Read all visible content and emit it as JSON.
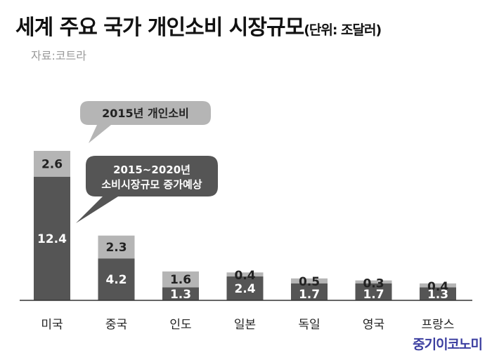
{
  "header": {
    "title": "세계 주요 국가 개인소비 시장규모",
    "unit": "(단위: 조달러)",
    "source": "자료:코트라"
  },
  "legend": {
    "base_label": "2015년 개인소비",
    "growth_label_line1": "2015~2020년",
    "growth_label_line2": "소비시장규모 증가예상"
  },
  "brand": "중기이코노미",
  "colors": {
    "base": "#555555",
    "growth": "#b5b5b5",
    "base_text": "#ffffff",
    "growth_text": "#222222"
  },
  "chart_data": {
    "type": "bar",
    "stacked": true,
    "categories": [
      "미국",
      "중국",
      "인도",
      "일본",
      "독일",
      "영국",
      "프랑스"
    ],
    "series": [
      {
        "name": "2015년 개인소비",
        "values": [
          12.4,
          4.2,
          1.3,
          2.4,
          1.7,
          1.7,
          1.3
        ]
      },
      {
        "name": "2015~2020년 소비시장규모 증가예상",
        "values": [
          2.6,
          2.3,
          1.6,
          0.4,
          0.5,
          0.3,
          0.4
        ]
      }
    ],
    "title": "세계 주요 국가 개인소비 시장규모",
    "xlabel": "",
    "ylabel": "",
    "ylim": [
      0,
      15
    ],
    "grid": false
  }
}
